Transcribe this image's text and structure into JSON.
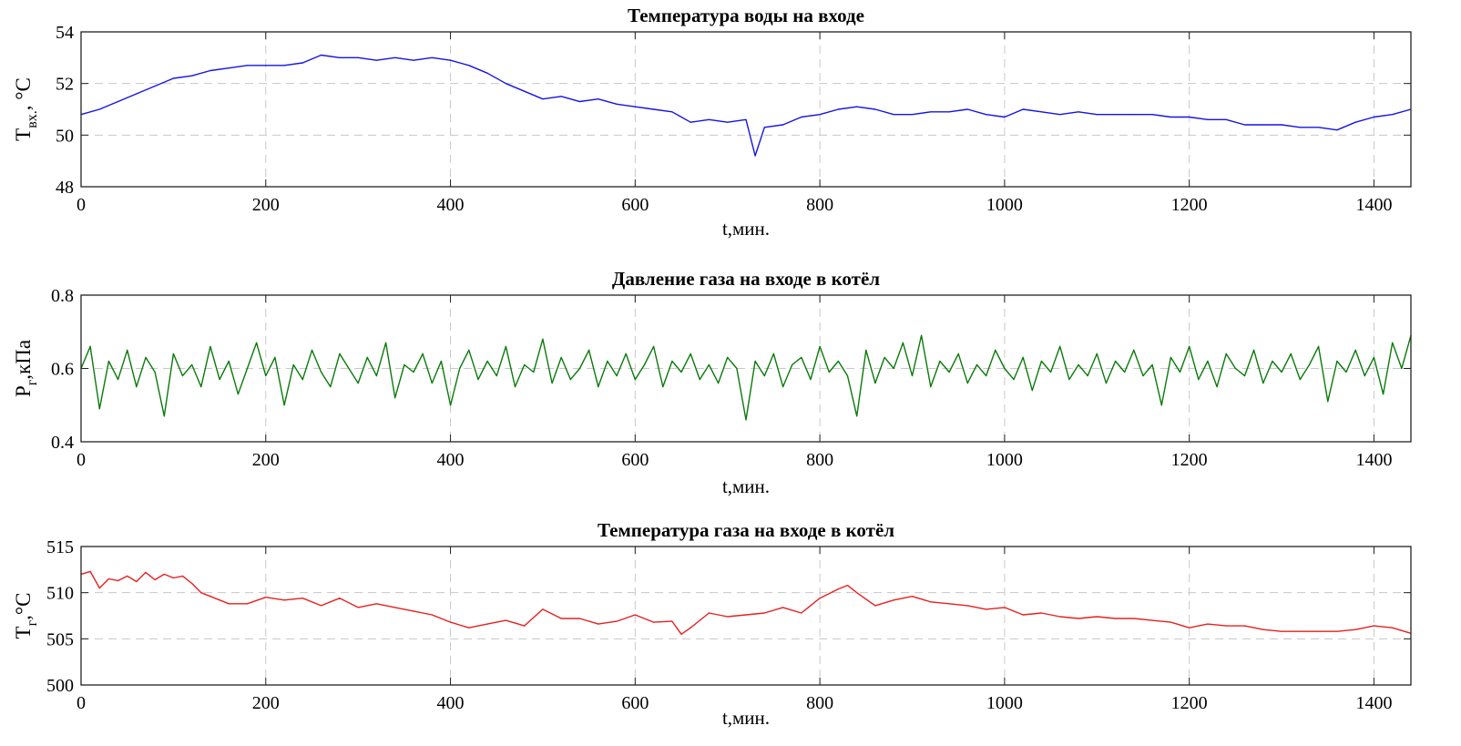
{
  "chart_data": [
    {
      "type": "line",
      "title": "Температура воды на входе",
      "xlabel": "t,мин.",
      "ylabel_main": "T",
      "ylabel_sub": "вх.",
      "ylabel_unit": ", °C",
      "xlim": [
        0,
        1440
      ],
      "ylim": [
        48,
        54
      ],
      "xticks": [
        0,
        200,
        400,
        600,
        800,
        1000,
        1200,
        1400
      ],
      "yticks": [
        48,
        50,
        52,
        54
      ],
      "grid": true,
      "color": "#1414e6",
      "x": [
        0,
        20,
        40,
        60,
        80,
        100,
        120,
        140,
        160,
        180,
        200,
        220,
        240,
        260,
        280,
        300,
        320,
        340,
        360,
        380,
        400,
        420,
        440,
        460,
        480,
        500,
        520,
        540,
        560,
        580,
        600,
        620,
        640,
        660,
        680,
        700,
        720,
        730,
        740,
        760,
        780,
        800,
        820,
        840,
        860,
        880,
        900,
        920,
        940,
        960,
        980,
        1000,
        1020,
        1040,
        1060,
        1080,
        1100,
        1120,
        1140,
        1160,
        1180,
        1200,
        1220,
        1240,
        1260,
        1280,
        1300,
        1320,
        1340,
        1360,
        1380,
        1400,
        1420,
        1440
      ],
      "values": [
        50.8,
        51.0,
        51.3,
        51.6,
        51.9,
        52.2,
        52.3,
        52.5,
        52.6,
        52.7,
        52.7,
        52.7,
        52.8,
        53.1,
        53.0,
        53.0,
        52.9,
        53.0,
        52.9,
        53.0,
        52.9,
        52.7,
        52.4,
        52.0,
        51.7,
        51.4,
        51.5,
        51.3,
        51.4,
        51.2,
        51.1,
        51.0,
        50.9,
        50.5,
        50.6,
        50.5,
        50.6,
        49.2,
        50.3,
        50.4,
        50.7,
        50.8,
        51.0,
        51.1,
        51.0,
        50.8,
        50.8,
        50.9,
        50.9,
        51.0,
        50.8,
        50.7,
        51.0,
        50.9,
        50.8,
        50.9,
        50.8,
        50.8,
        50.8,
        50.8,
        50.7,
        50.7,
        50.6,
        50.6,
        50.4,
        50.4,
        50.4,
        50.3,
        50.3,
        50.2,
        50.5,
        50.7,
        50.8,
        51.0
      ]
    },
    {
      "type": "line",
      "title": "Давление газа на входе в котёл",
      "xlabel": "t,мин.",
      "ylabel_main": "P",
      "ylabel_sub": "г",
      "ylabel_unit": ",кПа",
      "xlim": [
        0,
        1440
      ],
      "ylim": [
        0.4,
        0.8
      ],
      "xticks": [
        0,
        200,
        400,
        600,
        800,
        1000,
        1200,
        1400
      ],
      "yticks": [
        0.4,
        0.6,
        0.8
      ],
      "grid": true,
      "color": "#0a7a0a",
      "x_step": 10,
      "values": [
        0.6,
        0.66,
        0.49,
        0.62,
        0.57,
        0.65,
        0.55,
        0.63,
        0.59,
        0.47,
        0.64,
        0.58,
        0.61,
        0.55,
        0.66,
        0.57,
        0.62,
        0.53,
        0.6,
        0.67,
        0.58,
        0.63,
        0.5,
        0.61,
        0.57,
        0.65,
        0.59,
        0.55,
        0.64,
        0.6,
        0.56,
        0.63,
        0.58,
        0.67,
        0.52,
        0.61,
        0.59,
        0.64,
        0.56,
        0.62,
        0.5,
        0.6,
        0.65,
        0.57,
        0.62,
        0.58,
        0.66,
        0.55,
        0.61,
        0.59,
        0.68,
        0.56,
        0.63,
        0.57,
        0.6,
        0.65,
        0.55,
        0.62,
        0.58,
        0.64,
        0.57,
        0.61,
        0.66,
        0.55,
        0.62,
        0.59,
        0.64,
        0.57,
        0.61,
        0.56,
        0.63,
        0.6,
        0.46,
        0.62,
        0.58,
        0.64,
        0.55,
        0.61,
        0.63,
        0.57,
        0.66,
        0.59,
        0.62,
        0.58,
        0.47,
        0.65,
        0.56,
        0.63,
        0.6,
        0.67,
        0.58,
        0.69,
        0.55,
        0.62,
        0.59,
        0.64,
        0.56,
        0.61,
        0.58,
        0.65,
        0.6,
        0.57,
        0.63,
        0.54,
        0.62,
        0.59,
        0.66,
        0.57,
        0.61,
        0.58,
        0.64,
        0.56,
        0.62,
        0.59,
        0.65,
        0.58,
        0.61,
        0.5,
        0.63,
        0.59,
        0.66,
        0.57,
        0.62,
        0.55,
        0.64,
        0.6,
        0.58,
        0.65,
        0.56,
        0.62,
        0.59,
        0.64,
        0.57,
        0.61,
        0.66,
        0.51,
        0.62,
        0.59,
        0.65,
        0.58,
        0.63,
        0.53,
        0.67,
        0.6,
        0.69
      ]
    },
    {
      "type": "line",
      "title": "Температура газа на входе в котёл",
      "xlabel": "t,мин.",
      "ylabel_main": "T",
      "ylabel_sub": "г",
      "ylabel_unit": ",°C",
      "xlim": [
        0,
        1440
      ],
      "ylim": [
        500,
        515
      ],
      "xticks": [
        0,
        200,
        400,
        600,
        800,
        1000,
        1200,
        1400
      ],
      "yticks": [
        500,
        505,
        510,
        515
      ],
      "grid": true,
      "color": "#e62020",
      "x": [
        0,
        10,
        20,
        30,
        40,
        50,
        60,
        70,
        80,
        90,
        100,
        110,
        120,
        130,
        140,
        160,
        180,
        200,
        220,
        240,
        260,
        280,
        300,
        320,
        340,
        360,
        380,
        400,
        420,
        440,
        460,
        480,
        500,
        520,
        540,
        560,
        580,
        600,
        620,
        640,
        650,
        660,
        680,
        700,
        720,
        740,
        760,
        780,
        800,
        820,
        830,
        840,
        860,
        880,
        900,
        920,
        940,
        960,
        980,
        1000,
        1020,
        1040,
        1060,
        1080,
        1100,
        1120,
        1140,
        1160,
        1180,
        1200,
        1220,
        1240,
        1260,
        1280,
        1300,
        1320,
        1340,
        1360,
        1380,
        1400,
        1420,
        1440
      ],
      "values": [
        512.0,
        512.3,
        510.5,
        511.5,
        511.3,
        511.8,
        511.2,
        512.2,
        511.4,
        512.0,
        511.6,
        511.8,
        511.0,
        510.0,
        509.6,
        508.8,
        508.8,
        509.5,
        509.2,
        509.4,
        508.6,
        509.4,
        508.4,
        508.8,
        508.4,
        508.0,
        507.6,
        506.8,
        506.2,
        506.6,
        507.0,
        506.4,
        508.2,
        507.2,
        507.2,
        506.6,
        506.9,
        507.6,
        506.8,
        506.9,
        505.5,
        506.2,
        507.8,
        507.4,
        507.6,
        507.8,
        508.4,
        507.8,
        509.4,
        510.4,
        510.8,
        510.0,
        508.6,
        509.2,
        509.6,
        509.0,
        508.8,
        508.6,
        508.2,
        508.4,
        507.6,
        507.8,
        507.4,
        507.2,
        507.4,
        507.2,
        507.2,
        507.0,
        506.8,
        506.2,
        506.6,
        506.4,
        506.4,
        506.0,
        505.8,
        505.8,
        505.8,
        505.8,
        506.0,
        506.4,
        506.2,
        505.6
      ]
    }
  ]
}
